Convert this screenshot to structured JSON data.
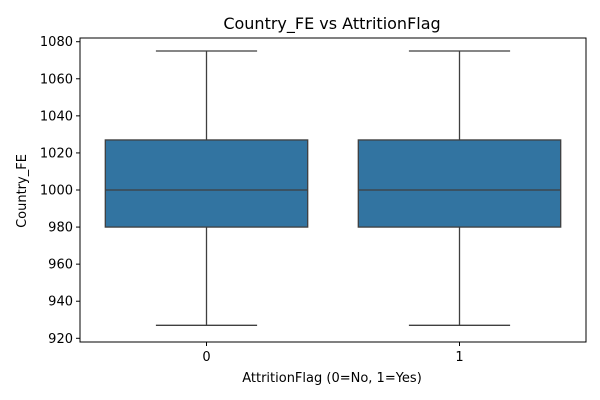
{
  "chart_data": {
    "type": "boxplot",
    "title": "Country_FE vs AttritionFlag",
    "xlabel": "AttritionFlag (0=No, 1=Yes)",
    "ylabel": "Country_FE",
    "ylim": [
      918,
      1082
    ],
    "yticks": [
      920,
      940,
      960,
      980,
      1000,
      1020,
      1040,
      1060,
      1080
    ],
    "categories": [
      "0",
      "1"
    ],
    "boxes": [
      {
        "category": "0",
        "whisker_low": 927,
        "q1": 980,
        "median": 1000,
        "q3": 1027,
        "whisker_high": 1075
      },
      {
        "category": "1",
        "whisker_low": 927,
        "q1": 980,
        "median": 1000,
        "q3": 1027,
        "whisker_high": 1075
      }
    ],
    "grid": false,
    "box_color": "#3274a1",
    "line_color": "#3f3f3f"
  }
}
